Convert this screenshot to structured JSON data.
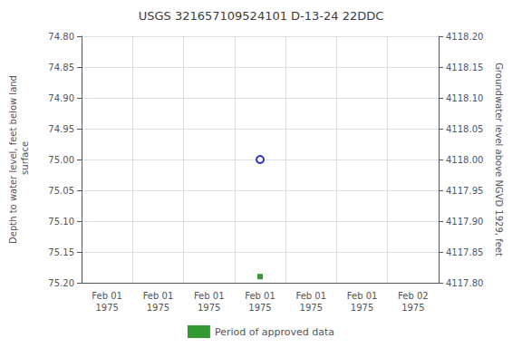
{
  "chart_data": {
    "type": "scatter",
    "title": "USGS 321657109524101 D-13-24 22DDC",
    "ylabel": "Depth to water level, feet below land\n surface",
    "y2label": "Groundwater level above NGVD 1929, feet",
    "categories": [
      "Feb 01\n1975",
      "Feb 01\n1975",
      "Feb 01\n1975",
      "Feb 01\n1975",
      "Feb 01\n1975",
      "Feb 01\n1975",
      "Feb 02\n1975"
    ],
    "series": [
      {
        "color": "#0000cc",
        "marker": "open-circle",
        "values": [
          null,
          null,
          null,
          75.0,
          null,
          null,
          null
        ]
      },
      {
        "name": "Period of approved data",
        "color": "#008000",
        "marker": "square",
        "values": [
          null,
          null,
          null,
          75.19,
          null,
          null,
          null
        ]
      }
    ],
    "ylim": [
      75.2,
      74.8
    ],
    "yticks": [
      {
        "value": 74.8,
        "label": "74.80"
      },
      74.85,
      {
        "value": 74.9,
        "label": "74.90"
      },
      74.95,
      {
        "value": 75.0,
        "label": "75.00"
      },
      75.05,
      {
        "value": 75.1,
        "label": "75.10"
      },
      75.15,
      {
        "value": 75.2,
        "label": "75.20"
      }
    ],
    "y2lim": [
      4117.8,
      4118.2
    ],
    "y2ticks": [
      {
        "value": 4118.2,
        "label": "4118.20"
      },
      4118.15,
      {
        "value": 4118.1,
        "label": "4118.10"
      },
      4118.05,
      {
        "value": 4118.0,
        "label": "4118.00"
      },
      4117.95,
      {
        "value": 4117.9,
        "label": "4117.90"
      },
      4117.85,
      {
        "value": 4117.8,
        "label": "4117.80"
      }
    ],
    "grid": true,
    "legend": "bottom"
  }
}
